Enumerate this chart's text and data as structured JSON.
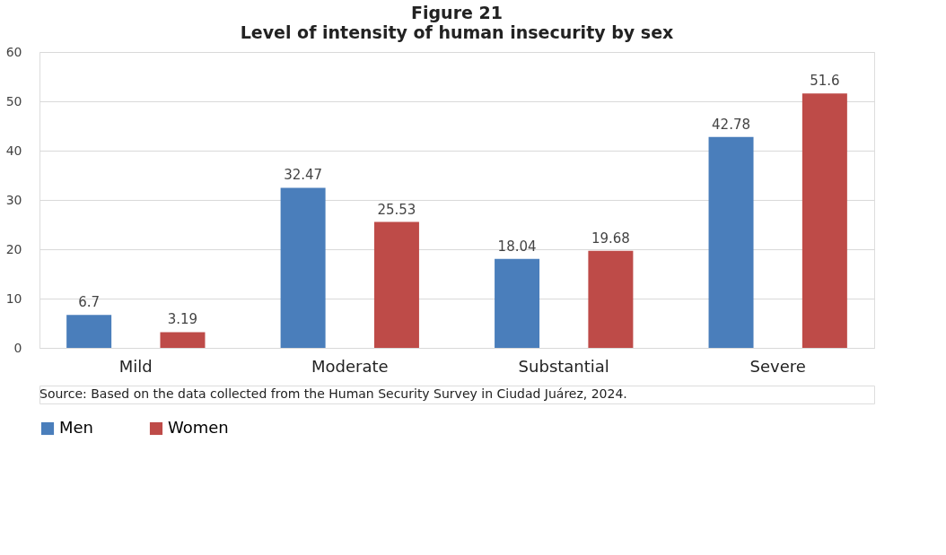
{
  "chart_data": {
    "type": "bar",
    "title": "Figure 21",
    "subtitle": "Level of intensity of human insecurity by sex",
    "categories": [
      "Mild",
      "Moderate",
      "Substantial",
      "Severe"
    ],
    "series": [
      {
        "name": "Men",
        "color": "#4a7ebb",
        "values": [
          6.7,
          32.47,
          18.04,
          42.78
        ]
      },
      {
        "name": "Women",
        "color": "#be4b48",
        "values": [
          3.19,
          25.53,
          19.68,
          51.6
        ]
      }
    ],
    "ylim": [
      0,
      60
    ],
    "yticks": [
      0,
      10,
      20,
      30,
      40,
      50,
      60
    ],
    "grid": "y",
    "legend": "bottom",
    "data_labels": true,
    "annotations": [
      "Source: Based on the data collected from the Human Security Survey in Ciudad Juárez, 2024."
    ]
  }
}
